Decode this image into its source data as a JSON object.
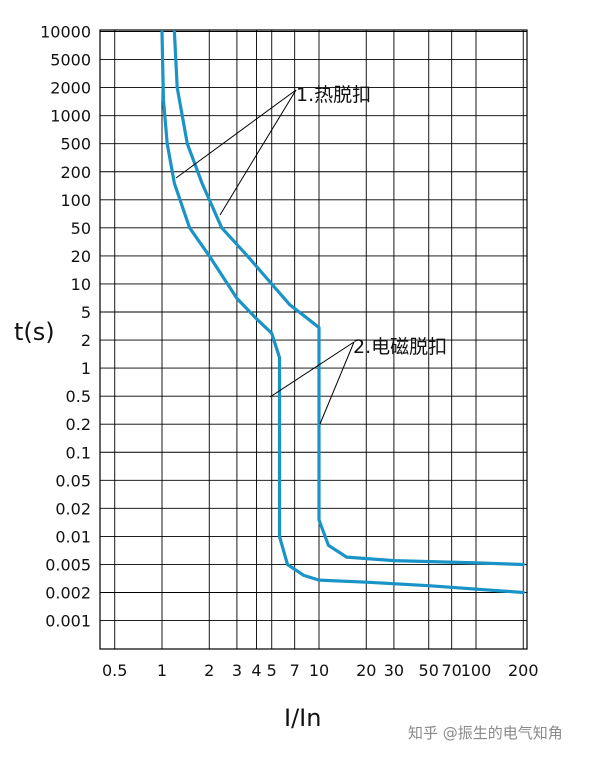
{
  "chart_data": {
    "type": "line",
    "title": "",
    "xlabel": "I/In",
    "ylabel": "t(s)",
    "x_scale": "log",
    "x_ticks": [
      {
        "value": 0.5,
        "label": "0.5"
      },
      {
        "value": 1,
        "label": "1"
      },
      {
        "value": 2,
        "label": "2"
      },
      {
        "value": 3,
        "label": "3"
      },
      {
        "value": 4,
        "label": "4"
      },
      {
        "value": 5,
        "label": "5"
      },
      {
        "value": 7,
        "label": "7"
      },
      {
        "value": 10,
        "label": "10"
      },
      {
        "value": 20,
        "label": "20"
      },
      {
        "value": 30,
        "label": "30"
      },
      {
        "value": 50,
        "label": "50"
      },
      {
        "value": 70,
        "label": "70"
      },
      {
        "value": 100,
        "label": "100"
      },
      {
        "value": 200,
        "label": "200"
      }
    ],
    "y_ticks": [
      "10000",
      "5000",
      "2000",
      "1000",
      "500",
      "200",
      "100",
      "50",
      "20",
      "10",
      "5",
      "2",
      "1",
      "0.5",
      "0.2",
      "0.1",
      "0.05",
      "0.02",
      "0.01",
      "0.005",
      "0.002",
      "0.001"
    ],
    "grid": true,
    "series": [
      {
        "points": [
          [
            1.0,
            10000
          ],
          [
            1.02,
            1500
          ],
          [
            1.08,
            500
          ],
          [
            1.2,
            150
          ],
          [
            1.5,
            50
          ],
          [
            2,
            20
          ],
          [
            3,
            7
          ],
          [
            4,
            4
          ],
          [
            5,
            2.5
          ],
          [
            5.6,
            1.3
          ],
          [
            5.6,
            1.3
          ],
          [
            5.6,
            0.5
          ],
          [
            5.6,
            0.01
          ],
          [
            6.3,
            0.005
          ],
          [
            8,
            0.0035
          ],
          [
            10,
            0.003
          ],
          [
            20,
            0.0028
          ],
          [
            50,
            0.0025
          ],
          [
            200,
            0.002
          ]
        ]
      },
      {
        "points": [
          [
            1.2,
            10000
          ],
          [
            1.25,
            2000
          ],
          [
            1.45,
            500
          ],
          [
            1.8,
            150
          ],
          [
            2.4,
            50
          ],
          [
            3.5,
            20
          ],
          [
            5,
            10
          ],
          [
            6.5,
            6
          ],
          [
            8.5,
            4
          ],
          [
            10,
            3
          ],
          [
            10,
            1
          ],
          [
            10,
            0.1
          ],
          [
            10,
            0.015
          ],
          [
            11.5,
            0.008
          ],
          [
            15,
            0.006
          ],
          [
            30,
            0.0055
          ],
          [
            100,
            0.0052
          ],
          [
            200,
            0.005
          ]
        ]
      }
    ],
    "annotations": [
      {
        "label": "1.热脱扣"
      },
      {
        "label": "2.电磁脱扣"
      }
    ],
    "colors": {
      "curve": "#1a94c6",
      "grid": "#000000",
      "text": "#111111"
    }
  },
  "watermark": "知乎 @振生的电气知角"
}
